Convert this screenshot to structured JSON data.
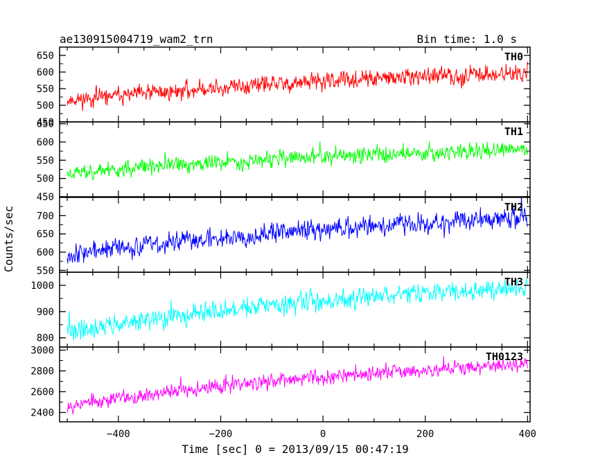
{
  "chart_data": {
    "type": "line",
    "title_left": "ae130915004719_wam2_trn",
    "title_right": "Bin time: 1.0 s",
    "xlabel": "Time [sec] 0 = 2013/09/15 00:47:19",
    "ylabel": "Counts/sec",
    "xlim": [
      -515,
      405
    ],
    "x_ticks": [
      -400,
      -200,
      0,
      200,
      400
    ],
    "x_tick_labels": [
      "−400",
      "−200",
      "0",
      "200",
      "400"
    ],
    "time_range": [
      -500,
      400
    ],
    "panels": [
      {
        "name": "TH0",
        "color": "#ff0000",
        "ylim": [
          450,
          675
        ],
        "y_ticks": [
          450,
          500,
          550,
          600,
          650
        ],
        "y_tick_labels": [
          "450",
          "500",
          "550",
          "600",
          "650"
        ],
        "trend_start": 515,
        "trend_end": 595,
        "noise": 28,
        "seed": 11
      },
      {
        "name": "TH1",
        "color": "#00ff00",
        "ylim": [
          450,
          655
        ],
        "y_ticks": [
          450,
          500,
          550,
          600,
          650
        ],
        "y_tick_labels": [
          "450",
          "500",
          "550",
          "600",
          "650"
        ],
        "trend_start": 515,
        "trend_end": 578,
        "noise": 24,
        "seed": 23
      },
      {
        "name": "TH2",
        "color": "#0000ff",
        "ylim": [
          545,
          750
        ],
        "y_ticks": [
          550,
          600,
          650,
          700
        ],
        "y_tick_labels": [
          "550",
          "600",
          "650",
          "700"
        ],
        "trend_start": 595,
        "trend_end": 692,
        "noise": 30,
        "seed": 37
      },
      {
        "name": "TH3",
        "color": "#00ffff",
        "ylim": [
          765,
          1050
        ],
        "y_ticks": [
          800,
          900,
          1000
        ],
        "y_tick_labels": [
          "800",
          "900",
          "1000"
        ],
        "trend_start": 825,
        "trend_end": 990,
        "noise": 40,
        "seed": 41
      },
      {
        "name": "TH0123",
        "color": "#ff00ff",
        "ylim": [
          2310,
          3030
        ],
        "y_ticks": [
          2400,
          2600,
          2800,
          3000
        ],
        "y_tick_labels": [
          "2400",
          "2600",
          "2800",
          "3000"
        ],
        "trend_start": 2470,
        "trend_end": 2860,
        "noise": 75,
        "seed": 53
      }
    ]
  }
}
